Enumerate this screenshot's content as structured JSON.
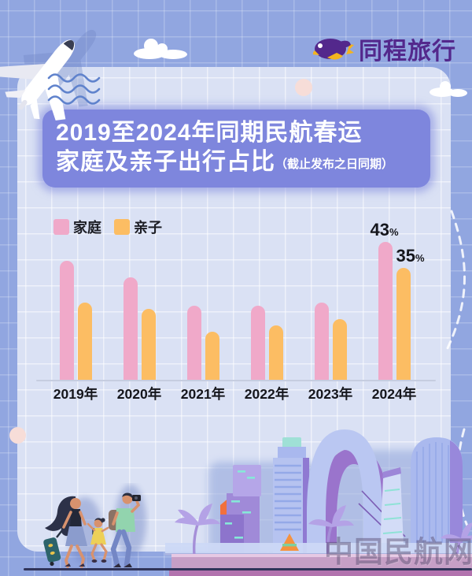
{
  "header": {
    "brand": "同程旅行"
  },
  "title": {
    "line1": "2019至2024年同期民航春运",
    "line2": "家庭及亲子出行占比",
    "note": "（截止发布之日同期）"
  },
  "legend": {
    "items": [
      {
        "label": "家庭",
        "color": "#f0a9c9"
      },
      {
        "label": "亲子",
        "color": "#fcbd63"
      }
    ]
  },
  "chart_data": {
    "type": "bar",
    "title": "2019至2024年同期民航春运家庭及亲子出行占比（截止发布之日同期）",
    "categories": [
      "2019年",
      "2020年",
      "2021年",
      "2022年",
      "2023年",
      "2024年"
    ],
    "series": [
      {
        "name": "家庭",
        "color": "#f0a9c9",
        "values": [
          37,
          32,
          23,
          23,
          24,
          43
        ]
      },
      {
        "name": "亲子",
        "color": "#fcbd63",
        "values": [
          24,
          22,
          15,
          17,
          19,
          35
        ]
      }
    ],
    "value_labels": [
      {
        "series": "家庭",
        "category": "2024年",
        "text": "43%"
      },
      {
        "series": "亲子",
        "category": "2024年",
        "text": "35%"
      }
    ],
    "unit": "%",
    "ylim": [
      0,
      45
    ],
    "grid": "subtle background grid, no y-axis",
    "legend_position": "top-left"
  },
  "watermark": "中国民航网",
  "colors": {
    "background": "#91a6e0",
    "panel": "#dae1f4",
    "banner": "#7e86dd",
    "family_bar": "#f0a9c9",
    "parent_child_bar": "#fcbd63",
    "logo_purple": "#53288c",
    "logo_yellow": "#f4b41f"
  }
}
